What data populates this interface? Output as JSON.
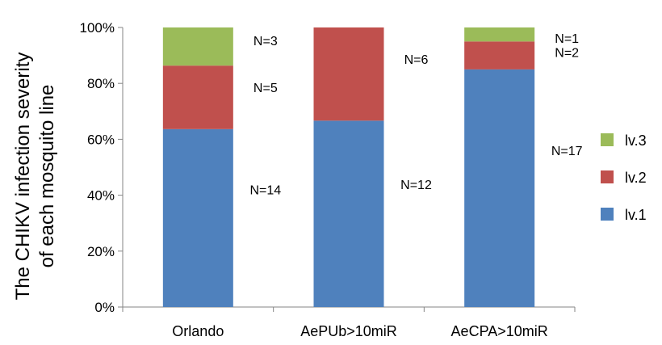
{
  "chart_data": {
    "type": "bar",
    "stacked": true,
    "percent": true,
    "categories": [
      "Orlando",
      "AePUb>10miR",
      "AeCPA>10miR"
    ],
    "series": [
      {
        "name": "lv.1",
        "color": "#4F81BD",
        "counts": [
          14,
          12,
          17
        ],
        "labels": [
          "N=14",
          "N=12",
          "N=17"
        ]
      },
      {
        "name": "lv.2",
        "color": "#C0504D",
        "counts": [
          5,
          6,
          2
        ],
        "labels": [
          "N=5",
          "N=6",
          "N=2"
        ]
      },
      {
        "name": "lv.3",
        "color": "#9BBB59",
        "counts": [
          3,
          0,
          1
        ],
        "labels": [
          "N=3",
          "",
          "N=1"
        ]
      }
    ],
    "ylabel_lines": [
      "The CHIKV infection severity",
      "of each mosquito line"
    ],
    "ylim": [
      0,
      100
    ],
    "yticks": [
      "0%",
      "20%",
      "40%",
      "60%",
      "80%",
      "100%"
    ],
    "legend_position": "right",
    "legend_order": [
      "lv.3",
      "lv.2",
      "lv.1"
    ],
    "grid": false
  }
}
